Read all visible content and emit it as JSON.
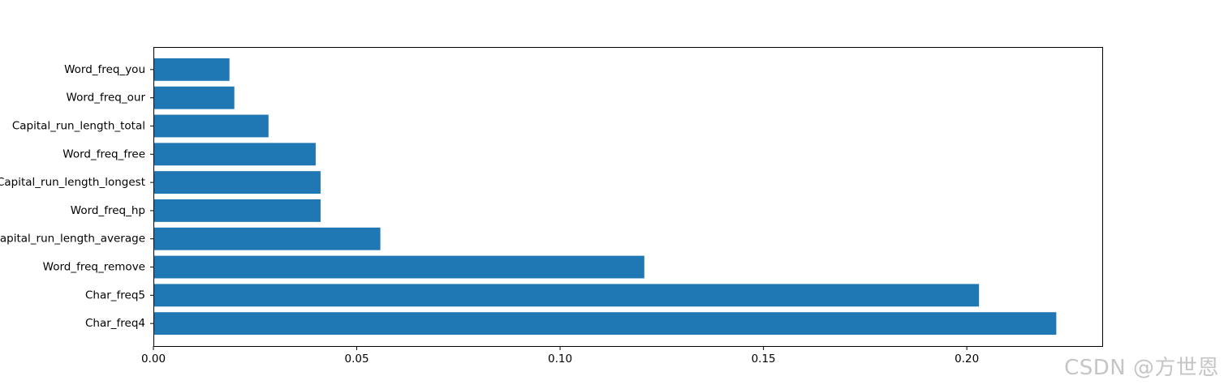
{
  "chart_data": {
    "type": "bar",
    "orientation": "horizontal",
    "categories": [
      "Char_freq4",
      "Char_freq5",
      "Word_freq_remove",
      "Capital_run_length_average",
      "Word_freq_hp",
      "Capital_run_length_longest",
      "Word_freq_free",
      "Capital_run_length_total",
      "Word_freq_our",
      "Word_freq_you"
    ],
    "values": [
      0.222,
      0.203,
      0.1207,
      0.0558,
      0.0411,
      0.0411,
      0.0399,
      0.0283,
      0.0199,
      0.0187
    ],
    "x_ticks": [
      "0.00",
      "0.05",
      "0.10",
      "0.15",
      "0.20"
    ],
    "x_tick_values": [
      0,
      0.05,
      0.1,
      0.15,
      0.2
    ],
    "xlim": [
      0,
      0.2333
    ],
    "title": "",
    "xlabel": "",
    "ylabel": "",
    "grid": false,
    "bar_color": "#1f77b4"
  },
  "watermark": "CSDN @方世恩"
}
